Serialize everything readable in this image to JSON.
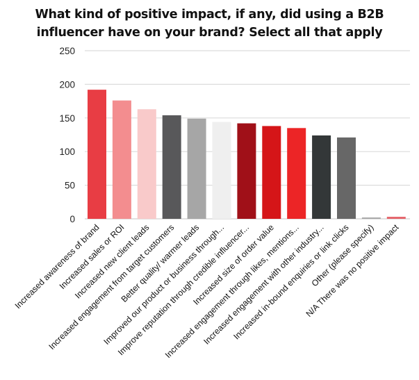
{
  "chart_data": {
    "type": "bar",
    "title": "What kind of positive impact, if any, did using a B2B influencer have on your brand? Select all that apply",
    "title_lines": [
      "What kind of positive impact, if any, did using a B2B",
      "influencer have on your brand? Select all that apply"
    ],
    "xlabel": "",
    "ylabel": "",
    "ylim": [
      0,
      250
    ],
    "yticks": [
      0,
      50,
      100,
      150,
      200,
      250
    ],
    "grid": true,
    "legend": "none",
    "categories": [
      "Increased awareness of brand",
      "Increased sales or ROI",
      "Increased new client leads",
      "Increased engagement from target customers",
      "Better quality/ warmer leads",
      "Improved our product or business through...",
      "Improve reputation through credible influencer...",
      "Increased size of order value",
      "Increased engagement through likes, mentions...",
      "Increased engagement with other industry...",
      "Increased in-bound enquiries or link clicks",
      "Other (please specify)",
      "N/A There was no positive impact"
    ],
    "values": [
      192,
      176,
      163,
      154,
      149,
      144,
      142,
      138,
      135,
      124,
      121,
      2,
      3
    ],
    "colors": [
      "#e83d44",
      "#f38d8f",
      "#f9caca",
      "#58585a",
      "#a6a6a6",
      "#efefef",
      "#a01018",
      "#d51518",
      "#ec2526",
      "#333738",
      "#676767",
      "#a8a8a8",
      "#e5636a"
    ]
  }
}
